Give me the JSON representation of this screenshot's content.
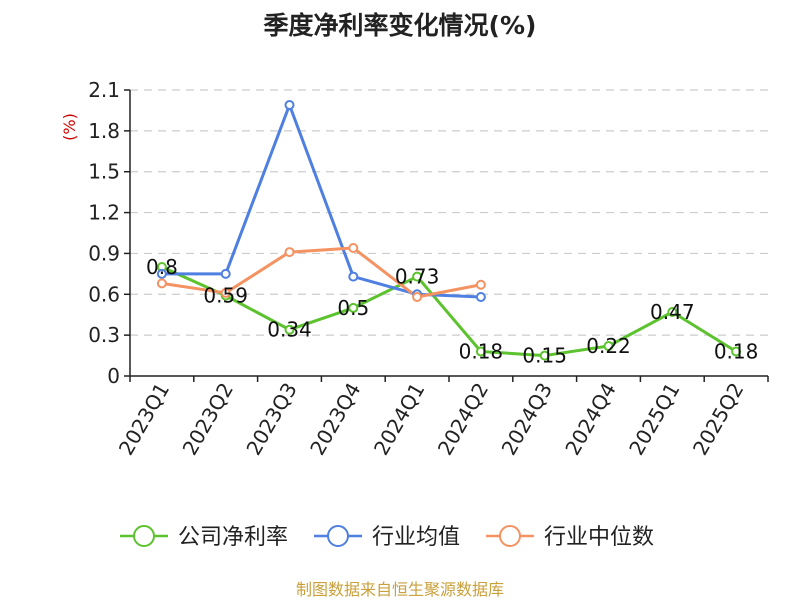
{
  "chart_data": {
    "type": "line",
    "title": "季度净利率变化情况(%)",
    "ylabel": "(%)",
    "xlabel": "",
    "ylim": [
      0,
      2.1
    ],
    "yticks": [
      0,
      0.3,
      0.6,
      0.9,
      1.2,
      1.5,
      1.8,
      2.1
    ],
    "categories": [
      "2023Q1",
      "2023Q2",
      "2023Q3",
      "2023Q4",
      "2024Q1",
      "2024Q2",
      "2024Q3",
      "2024Q4",
      "2025Q1",
      "2025Q2"
    ],
    "series": [
      {
        "name": "公司净利率",
        "color": "#5cc22e",
        "values": [
          0.8,
          0.59,
          0.34,
          0.5,
          0.73,
          0.18,
          0.15,
          0.22,
          0.47,
          0.18
        ],
        "labels": [
          "0.8",
          "0.59",
          "0.34",
          "0.5",
          "0.73",
          "0.18",
          "0.15",
          "0.22",
          "0.47",
          "0.18"
        ]
      },
      {
        "name": "行业均值",
        "color": "#4f7fe0",
        "values": [
          0.75,
          0.75,
          1.99,
          0.73,
          0.6,
          0.58,
          null,
          null,
          null,
          null
        ]
      },
      {
        "name": "行业中位数",
        "color": "#f59262",
        "values": [
          0.68,
          0.61,
          0.91,
          0.94,
          0.58,
          0.67,
          null,
          null,
          null,
          null
        ]
      }
    ],
    "grid": true,
    "legend_position": "bottom"
  },
  "source_text": "制图数据来自恒生聚源数据库",
  "colors": {
    "unit_label": "#cc0000",
    "source_text": "#c9a03c",
    "grid": "#cccccc",
    "axis": "#222222"
  }
}
